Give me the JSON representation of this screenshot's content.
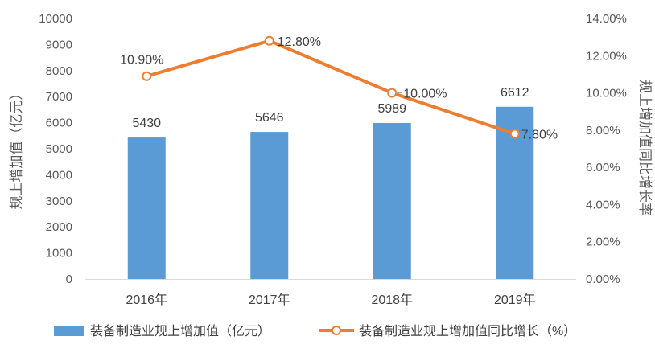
{
  "chart_data": {
    "type": "bar",
    "categories": [
      "2016年",
      "2017年",
      "2018年",
      "2019年"
    ],
    "series": [
      {
        "name": "装备制造业规上增加值（亿元）",
        "type": "bar",
        "axis": "left",
        "values": [
          5430,
          5646,
          5989,
          6612
        ],
        "data_labels": [
          "5430",
          "5646",
          "5989",
          "6612"
        ],
        "color": "#5B9BD5"
      },
      {
        "name": "装备制造业规上增加值同比增长（%）",
        "type": "line",
        "axis": "right",
        "values": [
          10.9,
          12.8,
          10.0,
          7.8
        ],
        "data_labels": [
          "10.90%",
          "12.80%",
          "10.00%",
          "7.80%"
        ],
        "color": "#ED7D31"
      }
    ],
    "y_left": {
      "label": "规上增加值（亿元）",
      "ylim": [
        0,
        10000
      ],
      "ticks": [
        "0",
        "1000",
        "2000",
        "3000",
        "4000",
        "5000",
        "6000",
        "7000",
        "8000",
        "9000",
        "10000"
      ]
    },
    "y_right": {
      "label": "规上增加值同比增长率",
      "ylim": [
        0,
        14
      ],
      "ticks": [
        "0.00%",
        "2.00%",
        "4.00%",
        "6.00%",
        "8.00%",
        "10.00%",
        "12.00%",
        "14.00%"
      ]
    },
    "grid": false,
    "legend_position": "bottom"
  }
}
